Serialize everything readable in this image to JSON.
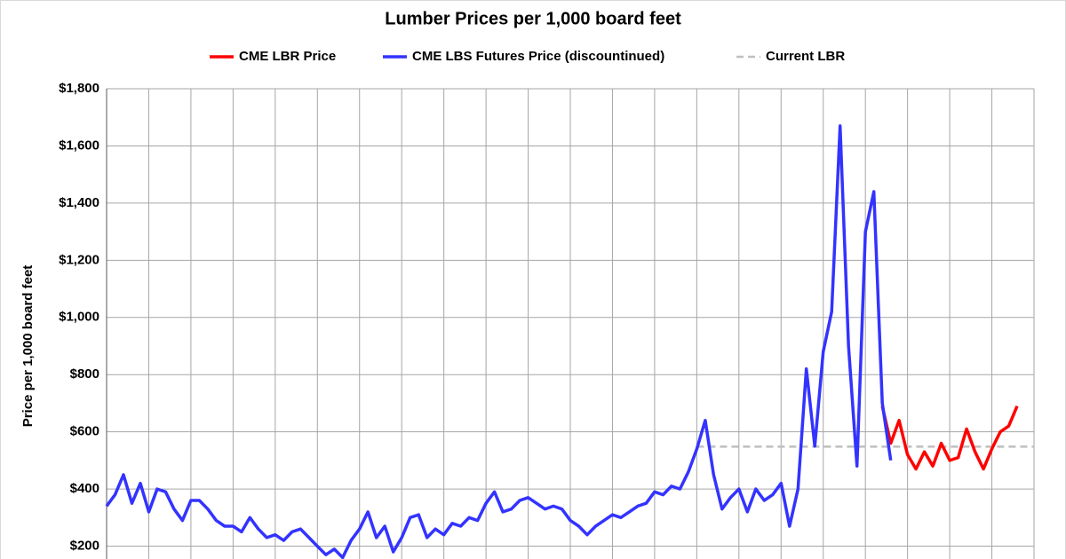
{
  "chart_data": {
    "type": "line",
    "title": "Lumber Prices per 1,000 board feet",
    "ylabel": "Price per 1,000 board feet",
    "ylim": [
      0,
      1800
    ],
    "yticks": [
      {
        "value": 200,
        "label": "$200"
      },
      {
        "value": 400,
        "label": "$400"
      },
      {
        "value": 600,
        "label": "$600"
      },
      {
        "value": 800,
        "label": "$800"
      },
      {
        "value": 1000,
        "label": "$1,000"
      },
      {
        "value": 1200,
        "label": "$1,200"
      },
      {
        "value": 1400,
        "label": "$1,400"
      },
      {
        "value": 1600,
        "label": "$1,600"
      },
      {
        "value": 1800,
        "label": "$1,800"
      }
    ],
    "grid": true,
    "legend": "top",
    "series": [
      {
        "name": "CME LBR Price",
        "color": "#ff0000",
        "values": [
          null,
          null,
          null,
          null,
          null,
          null,
          null,
          null,
          null,
          null,
          null,
          null,
          null,
          null,
          null,
          null,
          null,
          null,
          null,
          null,
          null,
          null,
          null,
          null,
          null,
          null,
          null,
          null,
          null,
          null,
          null,
          null,
          null,
          null,
          null,
          null,
          null,
          null,
          null,
          null,
          null,
          null,
          null,
          null,
          null,
          null,
          null,
          null,
          null,
          null,
          null,
          null,
          null,
          null,
          null,
          null,
          null,
          null,
          null,
          null,
          null,
          null,
          null,
          null,
          null,
          null,
          null,
          null,
          null,
          null,
          null,
          null,
          null,
          null,
          null,
          null,
          null,
          null,
          null,
          null,
          null,
          null,
          null,
          null,
          null,
          null,
          null,
          null,
          null,
          null,
          null,
          null,
          690,
          560,
          640,
          520,
          470,
          530,
          480,
          560,
          500,
          510,
          610,
          530,
          470,
          540,
          600,
          620,
          690,
          null,
          null
        ]
      },
      {
        "name": "CME LBS Futures Price (discountinued)",
        "color": "#3333ff",
        "values": [
          340,
          380,
          450,
          350,
          420,
          320,
          400,
          390,
          330,
          290,
          360,
          360,
          330,
          290,
          270,
          270,
          250,
          300,
          260,
          230,
          240,
          220,
          250,
          260,
          230,
          200,
          170,
          190,
          160,
          220,
          260,
          320,
          230,
          270,
          180,
          230,
          300,
          310,
          230,
          260,
          240,
          280,
          270,
          300,
          290,
          350,
          390,
          320,
          330,
          360,
          370,
          350,
          330,
          340,
          330,
          290,
          270,
          240,
          270,
          290,
          310,
          300,
          320,
          340,
          350,
          390,
          380,
          410,
          400,
          460,
          540,
          640,
          450,
          330,
          370,
          400,
          320,
          400,
          360,
          380,
          420,
          270,
          400,
          820,
          550,
          880,
          1020,
          1670,
          900,
          480,
          1300,
          1440,
          700,
          500,
          null,
          null,
          null,
          null,
          null,
          null,
          null,
          null,
          null,
          null,
          null,
          null,
          null,
          null,
          null,
          null,
          null
        ]
      },
      {
        "name": "Current LBR",
        "color": "#bfbfbf",
        "dashed": true,
        "values": [
          null,
          null,
          null,
          null,
          null,
          null,
          null,
          null,
          null,
          null,
          null,
          null,
          null,
          null,
          null,
          null,
          null,
          null,
          null,
          null,
          null,
          null,
          null,
          null,
          null,
          null,
          null,
          null,
          null,
          null,
          null,
          null,
          null,
          null,
          null,
          null,
          null,
          null,
          null,
          null,
          null,
          null,
          null,
          null,
          null,
          null,
          null,
          null,
          null,
          null,
          null,
          null,
          null,
          null,
          null,
          null,
          null,
          null,
          null,
          null,
          null,
          null,
          null,
          null,
          null,
          null,
          null,
          null,
          null,
          null,
          548,
          548,
          548,
          548,
          548,
          548,
          548,
          548,
          548,
          548,
          548,
          548,
          548,
          548,
          548,
          548,
          548,
          548,
          548,
          548,
          548,
          548,
          548,
          548,
          548,
          548,
          548,
          548,
          548,
          548,
          548,
          548,
          548,
          548,
          548,
          548,
          548,
          548,
          548,
          548,
          548
        ]
      }
    ]
  }
}
